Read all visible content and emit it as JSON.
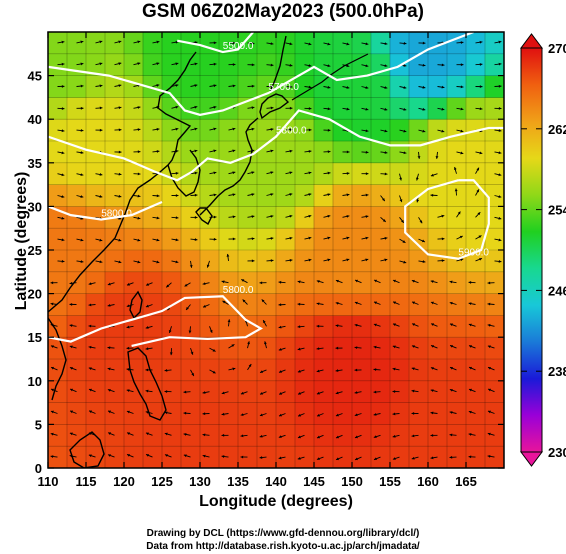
{
  "title": "GSM 06Z02May2023 (500.0hPa)",
  "xlabel": "Longitude (degrees)",
  "ylabel": "Latitude (degrees)",
  "credit_line1": "Drawing by DCL (https://www.gfd-dennou.org/library/dcl/)",
  "credit_line2": "Data from http://database.rish.kyoto-u.ac.jp/arch/jmadata/",
  "chart_data": {
    "type": "heatmap",
    "x_ticks": [
      "110",
      "115",
      "120",
      "125",
      "130",
      "135",
      "140",
      "145",
      "150",
      "155",
      "160",
      "165"
    ],
    "y_ticks": [
      "0",
      "5",
      "10",
      "15",
      "20",
      "25",
      "30",
      "35",
      "40",
      "45"
    ],
    "xlim": [
      110,
      170
    ],
    "ylim": [
      0,
      50
    ],
    "colorbar": {
      "ticks": [
        "230",
        "238",
        "246",
        "254",
        "262",
        "270"
      ],
      "range": [
        230,
        270
      ],
      "colors": [
        "#e8149b",
        "#9a00d8",
        "#1a1ad8",
        "#1a7ad8",
        "#18c8d8",
        "#18d890",
        "#20d020",
        "#90d818",
        "#e6d818",
        "#f0a018",
        "#f06010",
        "#e01010"
      ]
    },
    "contour_labels": [
      "5500.0",
      "5700.0",
      "5800.0",
      "5800.0",
      "5800.0",
      "5900.0"
    ],
    "contours": [
      {
        "label": "5500.0",
        "points": [
          [
            127,
            49
          ],
          [
            130,
            48.5
          ],
          [
            133,
            47.7
          ],
          [
            135,
            48
          ],
          [
            137,
            50
          ]
        ]
      },
      {
        "label": "5700.0",
        "points": [
          [
            110,
            46
          ],
          [
            118,
            45
          ],
          [
            122,
            44
          ],
          [
            126,
            43
          ],
          [
            128,
            41
          ],
          [
            130,
            40.5
          ],
          [
            133,
            41
          ],
          [
            136,
            42
          ],
          [
            139,
            43
          ],
          [
            142,
            44.5
          ],
          [
            145,
            46
          ],
          [
            148,
            44.5
          ],
          [
            152,
            45
          ],
          [
            156,
            46
          ],
          [
            160,
            48
          ],
          [
            166,
            50
          ]
        ]
      },
      {
        "label": "5800.0",
        "points": [
          [
            110,
            38
          ],
          [
            115,
            36.5
          ],
          [
            120,
            35.5
          ],
          [
            124,
            34
          ],
          [
            127,
            33
          ],
          [
            129,
            34
          ],
          [
            131,
            35.5
          ],
          [
            134,
            35
          ],
          [
            137,
            36
          ],
          [
            140,
            38
          ],
          [
            143,
            41
          ],
          [
            147,
            40
          ],
          [
            151,
            38
          ],
          [
            155,
            37
          ],
          [
            159,
            37
          ],
          [
            163,
            38
          ],
          [
            168,
            39
          ],
          [
            170,
            39
          ]
        ]
      },
      {
        "label": "5800.0",
        "points": [
          [
            110,
            30
          ],
          [
            113,
            29
          ],
          [
            117,
            28.5
          ],
          [
            121,
            29
          ],
          [
            125,
            30.5
          ]
        ]
      },
      {
        "label": "5900.0",
        "points": [
          [
            110,
            15
          ],
          [
            113,
            14.5
          ],
          [
            117,
            16
          ],
          [
            121,
            17
          ],
          [
            125,
            18
          ],
          [
            128,
            19.5
          ],
          [
            133,
            19.7
          ],
          [
            136,
            17
          ],
          [
            138,
            16
          ],
          [
            136,
            15
          ],
          [
            131,
            14.8
          ],
          [
            126,
            15
          ],
          [
            121,
            14
          ]
        ]
      },
      {
        "label": "5800.0",
        "points": [
          [
            164,
            33
          ],
          [
            160,
            32
          ],
          [
            157,
            30
          ],
          [
            157,
            27
          ],
          [
            160,
            24.5
          ],
          [
            164,
            24
          ],
          [
            167,
            25
          ],
          [
            168,
            28
          ],
          [
            168,
            31
          ],
          [
            166,
            33
          ],
          [
            164,
            33
          ]
        ]
      }
    ],
    "field_anchors": [
      {
        "lon": 160,
        "lat": 48,
        "value": 243
      },
      {
        "lon": 150,
        "lat": 44,
        "value": 251
      },
      {
        "lon": 130,
        "lat": 48,
        "value": 252
      },
      {
        "lon": 112,
        "lat": 46,
        "value": 255
      },
      {
        "lon": 115,
        "lat": 38,
        "value": 259
      },
      {
        "lon": 112,
        "lat": 25,
        "value": 265
      },
      {
        "lon": 140,
        "lat": 35,
        "value": 256
      },
      {
        "lon": 165,
        "lat": 35,
        "value": 259
      },
      {
        "lon": 150,
        "lat": 25,
        "value": 264
      },
      {
        "lon": 120,
        "lat": 15,
        "value": 268
      },
      {
        "lon": 150,
        "lat": 12,
        "value": 269
      },
      {
        "lon": 130,
        "lat": 3,
        "value": 268
      },
      {
        "lon": 165,
        "lat": 5,
        "value": 268
      }
    ]
  }
}
